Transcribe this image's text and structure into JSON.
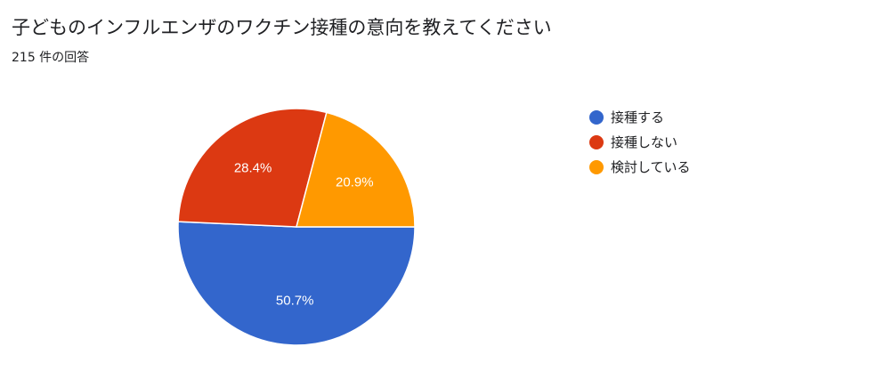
{
  "title": "子どものインフルエンザのワクチン接種の意向を教えてください",
  "subtitle": "215 件の回答",
  "chart_data": {
    "type": "pie",
    "categories": [
      "接種する",
      "接種しない",
      "検討している"
    ],
    "values": [
      50.7,
      28.4,
      20.9
    ],
    "labels": [
      "50.7%",
      "28.4%",
      "20.9%"
    ],
    "colors": [
      "#3366cc",
      "#dc3912",
      "#ff9900"
    ],
    "legend_position": "right"
  }
}
